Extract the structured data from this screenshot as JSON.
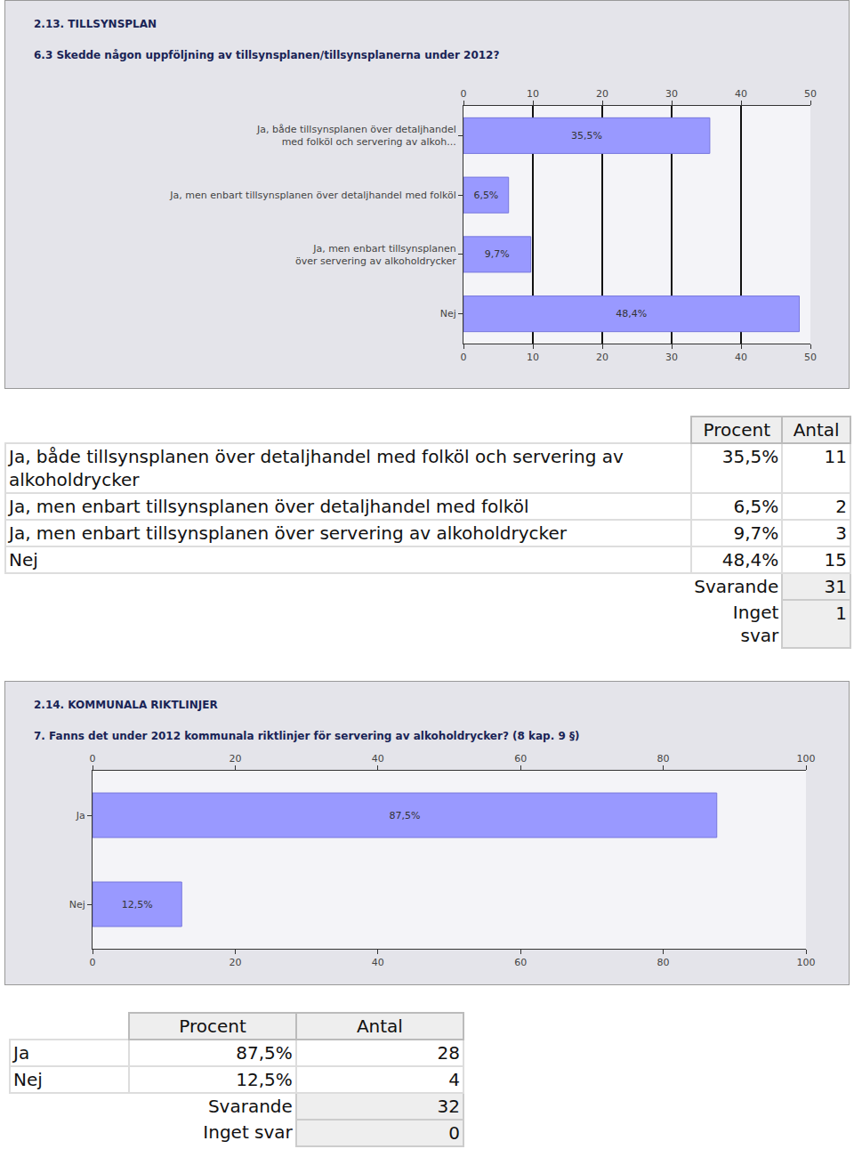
{
  "chart_data": [
    {
      "type": "bar",
      "orientation": "horizontal",
      "subtitle": "2.13. TILLSYNSPLAN",
      "title": "6.3 Skedde någon uppföljning av tillsynsplanen/tillsynsplanerna under 2012?",
      "categories": [
        "Ja, både tillsynsplanen över detaljhandel\nmed folköl och servering av alkoh...",
        "Ja, men enbart tillsynsplanen över detaljhandel med folköl",
        "Ja, men enbart tillsynsplanen\növer servering av alkoholdrycker",
        "Nej"
      ],
      "values": [
        35.5,
        6.5,
        9.7,
        48.4
      ],
      "value_labels": [
        "35,5%",
        "6,5%",
        "9,7%",
        "48,4%"
      ],
      "data_labels": true,
      "color": "#9999ff",
      "xlim": [
        0,
        50
      ],
      "xticks": [
        0,
        10,
        20,
        30,
        40,
        50
      ],
      "grid": true
    },
    {
      "type": "bar",
      "orientation": "horizontal",
      "subtitle": "2.14. KOMMUNALA RIKTLINJER",
      "title": "7. Fanns det under 2012 kommunala riktlinjer för servering av alkoholdrycker? (8 kap. 9 §)",
      "categories": [
        "Ja",
        "Nej"
      ],
      "values": [
        87.5,
        12.5
      ],
      "value_labels": [
        "87,5%",
        "12,5%"
      ],
      "data_labels": true,
      "color": "#9999ff",
      "xlim": [
        0,
        100
      ],
      "xticks": [
        0,
        20,
        40,
        60,
        80,
        100
      ],
      "grid": false
    }
  ],
  "tables": [
    {
      "header": [
        "Procent",
        "Antal"
      ],
      "rows": [
        [
          "Ja, både tillsynsplanen över detaljhandel med folköl och servering av alkoholdrycker",
          "35,5%",
          11
        ],
        [
          "Ja, men enbart tillsynsplanen över detaljhandel med folköl",
          "6,5%",
          2
        ],
        [
          "Ja, men enbart tillsynsplanen över servering av alkoholdrycker",
          "9,7%",
          3
        ],
        [
          "Nej",
          "48,4%",
          15
        ]
      ],
      "totals": [
        [
          "Svarande",
          31
        ],
        [
          "Inget svar",
          1
        ]
      ]
    },
    {
      "header": [
        "Procent",
        "Antal"
      ],
      "rows": [
        [
          "Ja",
          "87,5%",
          28
        ],
        [
          "Nej",
          "12,5%",
          4
        ]
      ],
      "totals": [
        [
          "Svarande",
          32
        ],
        [
          "Inget svar",
          0
        ]
      ]
    }
  ]
}
